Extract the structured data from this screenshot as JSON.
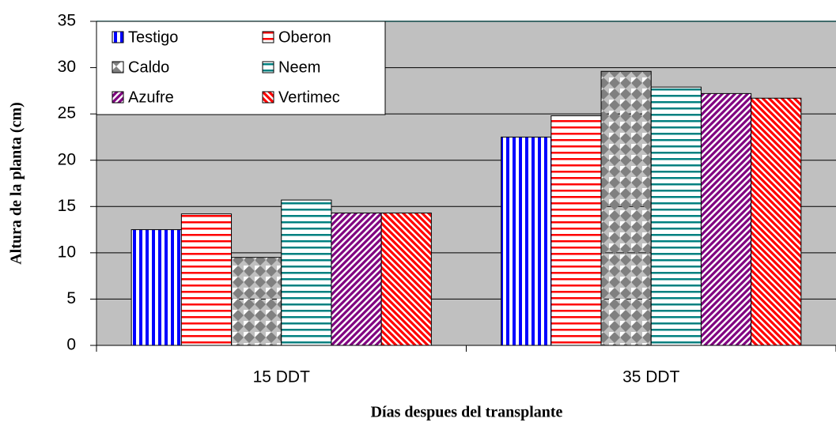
{
  "chart_data": {
    "type": "bar",
    "x_label": "Días despues del transplante",
    "y_label": "Altura de la planta (cm)",
    "categories": [
      "15 DDT",
      "35 DDT"
    ],
    "series": [
      {
        "name": "Testigo",
        "color": "#0000ff",
        "values": [
          12.5,
          22.5
        ]
      },
      {
        "name": "Oberon",
        "color": "#ff0000",
        "values": [
          14.2,
          24.8
        ]
      },
      {
        "name": "Caldo",
        "color": "#808080",
        "values": [
          9.5,
          29.6
        ]
      },
      {
        "name": "Neem",
        "color": "#008080",
        "values": [
          15.7,
          27.9
        ]
      },
      {
        "name": "Azufre",
        "color": "#800080",
        "values": [
          14.3,
          27.2
        ]
      },
      {
        "name": "Vertimec",
        "color": "#ff0000",
        "values": [
          14.3,
          26.7
        ]
      }
    ],
    "ylim": [
      0,
      35
    ],
    "yticks": [
      0,
      5,
      10,
      15,
      20,
      25,
      30,
      35
    ],
    "grid": true,
    "legend": "top-left"
  }
}
